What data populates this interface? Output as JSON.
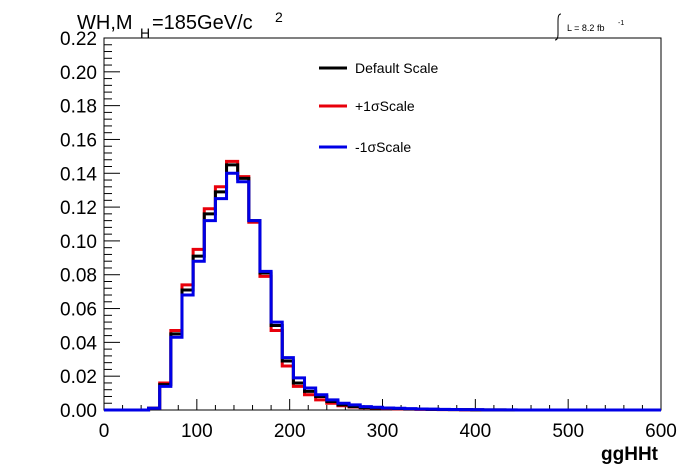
{
  "chart_data": {
    "type": "line",
    "title_main": "WH,M",
    "title_sub": "H",
    "title_rest": "=185GeV/c",
    "title_sup": "2",
    "lumi_main": "L = 8.2 fb",
    "lumi_sup": "-1",
    "xlabel": "ggHHt",
    "ylabel": "",
    "xlim": [
      0,
      600
    ],
    "ylim": [
      0,
      0.22
    ],
    "xticks": [
      "0",
      "100",
      "200",
      "300",
      "400",
      "500",
      "600"
    ],
    "yticks": [
      "0.00",
      "0.02",
      "0.04",
      "0.06",
      "0.08",
      "0.10",
      "0.12",
      "0.14",
      "0.16",
      "0.18",
      "0.20",
      "0.22"
    ],
    "bin_width": 12,
    "x": [
      0,
      12,
      24,
      36,
      48,
      60,
      72,
      84,
      96,
      108,
      120,
      132,
      144,
      156,
      168,
      180,
      192,
      204,
      216,
      228,
      240,
      252,
      264,
      276,
      288,
      300,
      312,
      324,
      336,
      348,
      360,
      372,
      384,
      396,
      408,
      420,
      432,
      444,
      456,
      468,
      480,
      492,
      504,
      516,
      528,
      540,
      552,
      564,
      576,
      588
    ],
    "grid": false,
    "legend_position": "top-center",
    "series": [
      {
        "name": "Default Scale",
        "color": "#000000",
        "values": [
          0,
          0,
          0,
          0,
          0.001,
          0.015,
          0.045,
          0.071,
          0.091,
          0.116,
          0.129,
          0.145,
          0.137,
          0.112,
          0.081,
          0.05,
          0.029,
          0.016,
          0.011,
          0.008,
          0.005,
          0.003,
          0.002,
          0.0015,
          0.0012,
          0.001,
          0.0008,
          0.0006,
          0.0005,
          0.0004,
          0.0003,
          0.0002,
          0.0002,
          0.0001,
          0.0001,
          0.0001,
          0,
          0,
          0,
          0,
          0,
          0,
          0,
          0,
          0,
          0,
          0,
          0,
          0,
          0
        ]
      },
      {
        "name": "+1σScale",
        "color": "#e8000b",
        "values": [
          0,
          0,
          0,
          0,
          0.001,
          0.016,
          0.047,
          0.074,
          0.095,
          0.119,
          0.132,
          0.147,
          0.138,
          0.111,
          0.079,
          0.047,
          0.026,
          0.014,
          0.009,
          0.006,
          0.004,
          0.0025,
          0.0018,
          0.0013,
          0.001,
          0.0008,
          0.0006,
          0.0005,
          0.0004,
          0.0003,
          0.0002,
          0.0002,
          0.0001,
          0.0001,
          0,
          0,
          0,
          0,
          0,
          0,
          0,
          0,
          0,
          0,
          0,
          0,
          0,
          0,
          0,
          0
        ]
      },
      {
        "name": "-1σScale",
        "color": "#0000e6",
        "values": [
          0,
          0,
          0,
          0,
          0.001,
          0.014,
          0.043,
          0.068,
          0.088,
          0.112,
          0.125,
          0.14,
          0.135,
          0.112,
          0.082,
          0.052,
          0.031,
          0.019,
          0.013,
          0.009,
          0.006,
          0.004,
          0.003,
          0.002,
          0.0016,
          0.0012,
          0.001,
          0.0008,
          0.0006,
          0.0005,
          0.0004,
          0.0003,
          0.0002,
          0.0002,
          0.0001,
          0.0001,
          0.0001,
          0,
          0,
          0,
          0,
          0,
          0,
          0,
          0,
          0,
          0,
          0,
          0,
          0
        ]
      }
    ]
  }
}
